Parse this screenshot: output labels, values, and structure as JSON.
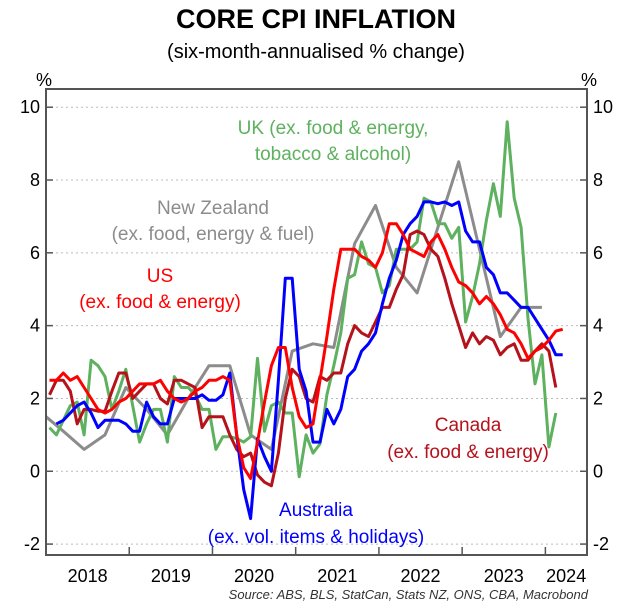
{
  "chart_data": {
    "type": "line",
    "title": "CORE CPI INFLATION",
    "subtitle": "(six-month-annualised % change)",
    "ylabel_left": "%",
    "ylabel_right": "%",
    "ylim": [
      -2.3,
      10.5
    ],
    "xlim": [
      2018.0,
      2024.5
    ],
    "yticks": [
      "-2",
      "0",
      "2",
      "4",
      "6",
      "8",
      "10"
    ],
    "xticks": [
      "2018",
      "2019",
      "2020",
      "2021",
      "2022",
      "2023",
      "2024"
    ],
    "grid": "horizontal dotted",
    "source": "Source: ABS, BLS, StatCan, Stats NZ, ONS, CBA, Macrobond",
    "series": [
      {
        "name": "New Zealand",
        "label": [
          "New Zealand",
          "(ex. food, energy & fuel)"
        ],
        "color": "#8c8c8c",
        "freq": "quarterly",
        "start_month_offset": -0.5,
        "values": [
          1.5,
          1.1,
          0.6,
          1.0,
          2.3,
          1.7,
          1.0,
          2.0,
          2.9,
          2.9,
          1.0,
          0.6,
          3.3,
          3.5,
          3.4,
          6.25,
          7.3,
          5.6,
          4.9,
          6.7,
          8.5,
          6.1,
          3.7,
          4.5,
          4.5
        ]
      },
      {
        "name": "UK",
        "label": [
          "UK (ex. food & energy,",
          "tobacco & alcohol)"
        ],
        "color": "#5eb15e",
        "freq": "monthly",
        "start_month_offset": 0.5,
        "values": [
          1.2,
          1.0,
          1.4,
          1.8,
          1.9,
          1.0,
          3.05,
          2.9,
          2.6,
          1.7,
          2.2,
          2.8,
          1.8,
          0.8,
          1.3,
          1.7,
          1.7,
          0.8,
          2.6,
          2.3,
          2.3,
          2.1,
          1.7,
          1.7,
          0.6,
          0.95,
          0.95,
          0.9,
          0.8,
          0.95,
          3.1,
          1.1,
          1.8,
          1.9,
          1.6,
          1.6,
          -0.15,
          1.0,
          0.5,
          0.75,
          2.1,
          2.9,
          3.8,
          5.3,
          5.4,
          6.3,
          5.7,
          5.6,
          4.9,
          5.1,
          6.1,
          6.1,
          6.1,
          6.3,
          7.5,
          7.4,
          6.8,
          6.8,
          6.4,
          6.7,
          4.1,
          4.8,
          5.7,
          6.9,
          7.9,
          7.0,
          9.6,
          7.5,
          6.7,
          4.2,
          2.4,
          3.2,
          0.67,
          1.6
        ]
      },
      {
        "name": "Canada",
        "label": [
          "Canada",
          "(ex. food & energy)"
        ],
        "color": "#b5121b",
        "freq": "monthly",
        "start_month_offset": 0.5,
        "values": [
          2.1,
          2.5,
          2.5,
          2.2,
          1.3,
          1.7,
          1.7,
          1.65,
          1.65,
          2.2,
          2.7,
          2.7,
          2.0,
          2.2,
          2.4,
          2.4,
          2.0,
          1.85,
          2.5,
          2.5,
          2.4,
          2.3,
          1.2,
          1.5,
          1.5,
          1.5,
          1.0,
          0.6,
          0.4,
          0.5,
          -0.1,
          -0.3,
          -0.4,
          0.5,
          2.0,
          2.8,
          2.6,
          2.0,
          1.9,
          2.6,
          2.5,
          2.7,
          2.7,
          3.5,
          4.0,
          3.8,
          3.7,
          4.1,
          4.5,
          4.5,
          5.0,
          5.4,
          6.5,
          6.6,
          6.5,
          6.1,
          5.9,
          5.3,
          4.6,
          4.0,
          3.4,
          3.8,
          3.5,
          3.7,
          3.6,
          3.2,
          3.4,
          3.5,
          3.05,
          3.05,
          3.3,
          3.5,
          3.3,
          2.3
        ]
      },
      {
        "name": "Australia",
        "label": [
          "Australia",
          "(ex. vol. items & holidays)"
        ],
        "color": "#0000ff",
        "freq": "monthly",
        "start_month_offset": 1.5,
        "values": [
          1.3,
          1.4,
          1.6,
          1.8,
          1.9,
          1.6,
          1.2,
          1.4,
          1.4,
          1.4,
          1.3,
          1.1,
          1.1,
          1.9,
          1.5,
          1.3,
          1.3,
          2.0,
          2.0,
          2.0,
          2.0,
          2.1,
          1.95,
          1.95,
          2.1,
          2.7,
          1.0,
          -0.5,
          -1.3,
          0.9,
          0.4,
          0.0,
          2.5,
          5.3,
          5.3,
          2.8,
          2.2,
          0.8,
          0.8,
          1.7,
          1.3,
          1.7,
          2.6,
          2.8,
          3.3,
          3.5,
          3.8,
          4.6,
          5.3,
          5.8,
          6.5,
          6.8,
          7.0,
          7.4,
          7.4,
          7.35,
          7.4,
          7.3,
          7.4,
          6.6,
          6.3,
          6.3,
          5.6,
          5.4,
          4.9,
          4.9,
          4.7,
          4.5,
          4.5,
          4.2,
          3.9,
          3.6,
          3.2,
          3.2
        ]
      },
      {
        "name": "US",
        "label": [
          "US",
          "(ex. food & energy)"
        ],
        "color": "#ff0000",
        "freq": "monthly",
        "start_month_offset": 0.5,
        "values": [
          2.5,
          2.5,
          2.7,
          2.5,
          2.6,
          2.3,
          2.0,
          1.7,
          1.6,
          1.7,
          1.9,
          2.0,
          2.2,
          2.4,
          2.4,
          2.4,
          2.5,
          2.2,
          2.0,
          1.9,
          2.0,
          2.2,
          2.3,
          2.5,
          2.5,
          2.6,
          2.5,
          1.0,
          0.1,
          -0.2,
          0.8,
          1.9,
          2.9,
          3.4,
          3.4,
          2.3,
          1.5,
          1.2,
          1.3,
          2.5,
          3.7,
          5.0,
          6.1,
          6.1,
          6.1,
          5.9,
          5.8,
          5.6,
          6.0,
          6.8,
          6.8,
          6.5,
          6.1,
          6.0,
          5.9,
          6.3,
          6.5,
          6.1,
          5.6,
          5.2,
          5.1,
          4.9,
          4.6,
          4.8,
          4.6,
          4.3,
          3.9,
          3.8,
          3.5,
          3.1,
          3.3,
          3.4,
          3.6,
          3.85,
          3.9
        ]
      }
    ]
  }
}
